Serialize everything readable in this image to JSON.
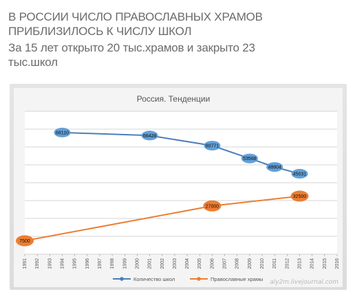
{
  "post": {
    "headline_line1": "В РОССИИ ЧИСЛО ПРАВОСЛАВНЫХ ХРАМОВ",
    "headline_line2": "ПРИБЛИЗИЛОСЬ К ЧИСЛУ ШКОЛ",
    "subline_line1": "За 15 лет открыто 20 тыс.храмов и закрыто 23",
    "subline_line2": "тыс.школ"
  },
  "watermark": "aly2m.livejournal.com",
  "colors": {
    "schools": "#4a7ebb",
    "schools_marker": "#5b9bd5",
    "churches": "#ed7d31",
    "grid": "#c8c8c8",
    "plot_bg": "#ffffff"
  },
  "chart_data": {
    "type": "line",
    "title": "Россия. Тенденции",
    "x": [
      "1991",
      "1992",
      "1993",
      "1994",
      "1995",
      "1996",
      "1997",
      "1998",
      "1999",
      "2000",
      "2001",
      "2002",
      "2003",
      "2004",
      "2005",
      "2006",
      "2007",
      "2008",
      "2009",
      "2010",
      "2011",
      "2012",
      "2013",
      "2014",
      "2015",
      "2016"
    ],
    "ylim": [
      0,
      80000
    ],
    "grid": true,
    "legend_placement": "bottom",
    "series": [
      {
        "name": "Количество школ",
        "color_key": "schools",
        "points": [
          {
            "x": "1994",
            "y": 68110,
            "label": "68110"
          },
          {
            "x": "2001",
            "y": 66428,
            "label": "66428"
          },
          {
            "x": "2006",
            "y": 60771,
            "label": "60771"
          },
          {
            "x": "2009",
            "y": 53568,
            "label": "53568"
          },
          {
            "x": "2011",
            "y": 48804,
            "label": "48804"
          },
          {
            "x": "2013",
            "y": 45031,
            "label": "45031"
          }
        ]
      },
      {
        "name": "Православные храмы",
        "color_key": "churches",
        "points": [
          {
            "x": "1991",
            "y": 7500,
            "label": "7500"
          },
          {
            "x": "2006",
            "y": 27000,
            "label": "27000"
          },
          {
            "x": "2013",
            "y": 32500,
            "label": "32500"
          }
        ]
      }
    ]
  }
}
